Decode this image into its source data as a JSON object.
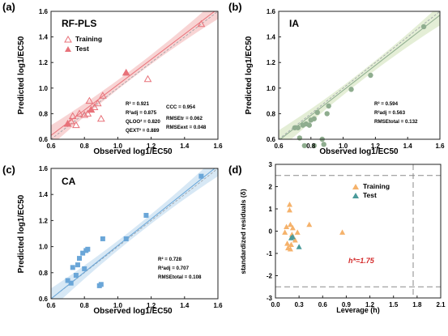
{
  "chart_data": [
    {
      "panel": "(a)",
      "type": "scatter",
      "title": "RF-PLS",
      "xlabel": "Observed log1/EC50",
      "ylabel": "Predicted log1/EC50",
      "xlim": [
        0.6,
        1.6
      ],
      "ylim": [
        0.6,
        1.6
      ],
      "xticks": [
        "0.6",
        "0.8",
        "1.0",
        "1.2",
        "1.4",
        "1.6"
      ],
      "yticks": [
        "0.6",
        "0.8",
        "1.0",
        "1.2",
        "1.4",
        "1.6"
      ],
      "color": "#e8727a",
      "band_color": "#f6c5c5",
      "legend": {
        "position": "top-left",
        "items": [
          {
            "label": "Training",
            "marker": "triangle-open"
          },
          {
            "label": "Test",
            "marker": "triangle-filled"
          }
        ]
      },
      "fit": {
        "x": [
          0.6,
          1.6
        ],
        "y": [
          0.63,
          1.62
        ]
      },
      "series": [
        {
          "name": "Training",
          "marker": "triangle-open",
          "x": [
            0.7,
            0.72,
            0.73,
            0.75,
            0.77,
            0.8,
            0.82,
            0.83,
            0.86,
            0.88,
            0.9,
            0.91,
            1.18,
            1.5
          ],
          "y": [
            0.72,
            0.74,
            0.78,
            0.71,
            0.8,
            0.79,
            0.8,
            0.9,
            0.85,
            0.88,
            0.76,
            0.94,
            1.07,
            1.5
          ]
        },
        {
          "name": "Test",
          "marker": "triangle-filled",
          "x": [
            0.7,
            0.84,
            1.05
          ],
          "y": [
            0.72,
            0.83,
            1.12
          ]
        }
      ],
      "stats": [
        "R² = 0.921",
        "R²adj = 0.875",
        "QLOO² = 0.820",
        "QEXT² = 0.889",
        "CCC = 0.954",
        "RMSEtr = 0.062",
        "RMSEext = 0.048"
      ]
    },
    {
      "panel": "(b)",
      "type": "scatter",
      "title": "IA",
      "xlabel": "Observed log1/EC50",
      "ylabel": "Predicted log1/EC50",
      "xlim": [
        0.6,
        1.6
      ],
      "ylim": [
        0.6,
        1.6
      ],
      "xticks": [
        "0.6",
        "0.8",
        "1.0",
        "1.2",
        "1.4",
        "1.6"
      ],
      "yticks": [
        "0.6",
        "0.8",
        "1.0",
        "1.2",
        "1.4",
        "1.6"
      ],
      "color": "#8fad8f",
      "band_color": "#dbe8c8",
      "fit": {
        "x": [
          0.6,
          1.6
        ],
        "y": [
          0.59,
          1.57
        ]
      },
      "series": [
        {
          "marker": "circle",
          "x": [
            0.7,
            0.72,
            0.73,
            0.75,
            0.76,
            0.77,
            0.79,
            0.8,
            0.82,
            0.82,
            0.84,
            0.87,
            0.88,
            0.9,
            0.91,
            1.05,
            1.17,
            1.5
          ],
          "y": [
            0.69,
            0.69,
            0.61,
            0.71,
            0.55,
            0.72,
            0.71,
            0.75,
            0.55,
            0.76,
            0.81,
            0.6,
            0.56,
            0.8,
            0.86,
            0.99,
            1.1,
            1.48
          ]
        }
      ],
      "stats": [
        "R² = 0.594",
        "R²adj = 0.563",
        "RMSEtotal = 0.132"
      ]
    },
    {
      "panel": "(c)",
      "type": "scatter",
      "title": "CA",
      "xlabel": "Observed log1/EC50",
      "ylabel": "Predicted log1/EC50",
      "xlim": [
        0.6,
        1.6
      ],
      "ylim": [
        0.6,
        1.6
      ],
      "xticks": [
        "0.6",
        "0.8",
        "1.0",
        "1.2",
        "1.4",
        "1.6"
      ],
      "yticks": [
        "0.6",
        "0.8",
        "1.0",
        "1.2",
        "1.4",
        "1.6"
      ],
      "color": "#6aa6d8",
      "band_color": "#c9e0f2",
      "fit": {
        "x": [
          0.6,
          1.6
        ],
        "y": [
          0.6,
          1.62
        ]
      },
      "series": [
        {
          "marker": "square",
          "x": [
            0.7,
            0.72,
            0.73,
            0.75,
            0.76,
            0.77,
            0.79,
            0.8,
            0.81,
            0.82,
            0.89,
            0.9,
            0.91,
            1.05,
            1.17,
            1.5
          ],
          "y": [
            0.74,
            0.72,
            0.84,
            0.78,
            0.86,
            0.91,
            0.95,
            0.83,
            0.97,
            0.98,
            0.7,
            0.71,
            1.06,
            1.06,
            1.24,
            1.54
          ]
        }
      ],
      "stats": [
        "R² = 0.728",
        "R²adj = 0.707",
        "RMSEtotal = 0.108"
      ]
    },
    {
      "panel": "(d)",
      "type": "scatter",
      "xlabel": "Leverage (h)",
      "ylabel": "standardized residuals (δ)",
      "xlim": [
        0.0,
        2.1
      ],
      "ylim": [
        -3,
        3
      ],
      "xticks": [
        "0.0",
        "0.3",
        "0.6",
        "0.9",
        "1.2",
        "1.5",
        "1.8",
        "2.1"
      ],
      "yticks": [
        "-3",
        "-2",
        "-1",
        "0",
        "1",
        "2",
        "3"
      ],
      "legend": {
        "position": "top-right",
        "items": [
          {
            "label": "Training",
            "color": "#f5b26b"
          },
          {
            "label": "Test",
            "color": "#4a9a9a"
          }
        ]
      },
      "h_star_label": "h*=1.75",
      "h_star": 1.75,
      "residual_limits": [
        2.5,
        -2.5
      ],
      "series": [
        {
          "name": "Training",
          "color": "#f5b26b",
          "x": [
            0.12,
            0.14,
            0.15,
            0.16,
            0.18,
            0.18,
            0.19,
            0.19,
            0.2,
            0.21,
            0.22,
            0.25,
            0.28,
            0.43,
            0.85
          ],
          "y": [
            -0.05,
            0.2,
            -0.55,
            -0.75,
            1.2,
            0.95,
            0.3,
            -0.8,
            -0.6,
            -0.15,
            0.15,
            -0.4,
            -0.05,
            0.3,
            -0.05
          ]
        },
        {
          "name": "Test",
          "color": "#4a9a9a",
          "x": [
            0.2,
            0.22,
            0.3
          ],
          "y": [
            -0.3,
            -0.25,
            -0.7
          ]
        }
      ]
    }
  ]
}
